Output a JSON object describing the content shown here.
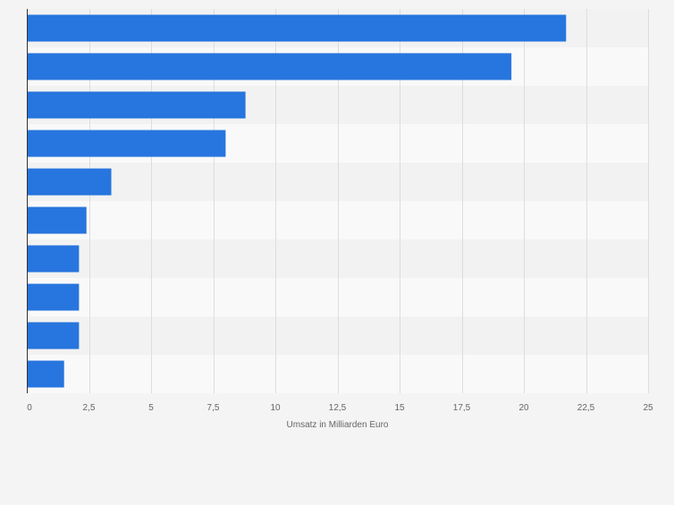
{
  "chart_data": {
    "type": "bar",
    "orientation": "horizontal",
    "title": "",
    "xlabel": "Umsatz in Milliarden Euro",
    "ylabel": "",
    "categories": [
      "",
      "",
      "",
      "",
      "",
      "",
      "",
      "",
      "",
      ""
    ],
    "values": [
      21.7,
      19.5,
      8.8,
      8.0,
      3.4,
      2.4,
      2.1,
      2.1,
      2.1,
      1.5
    ],
    "xlim": [
      0,
      25
    ],
    "ticks": [
      {
        "value": 0,
        "label": "0"
      },
      {
        "value": 2.5,
        "label": "2,5"
      },
      {
        "value": 5,
        "label": "5"
      },
      {
        "value": 7.5,
        "label": "7,5"
      },
      {
        "value": 10,
        "label": "10"
      },
      {
        "value": 12.5,
        "label": "12,5"
      },
      {
        "value": 15,
        "label": "15"
      },
      {
        "value": 17.5,
        "label": "17,5"
      },
      {
        "value": 20,
        "label": "20"
      },
      {
        "value": 22.5,
        "label": "22,5"
      },
      {
        "value": 25,
        "label": "25"
      }
    ],
    "grid": true,
    "colors": {
      "bar": "#2775de",
      "band_light": "#f9f9f9",
      "band_dark": "#f2f2f2",
      "grid": "#dddddd",
      "axis": "#333333"
    }
  }
}
